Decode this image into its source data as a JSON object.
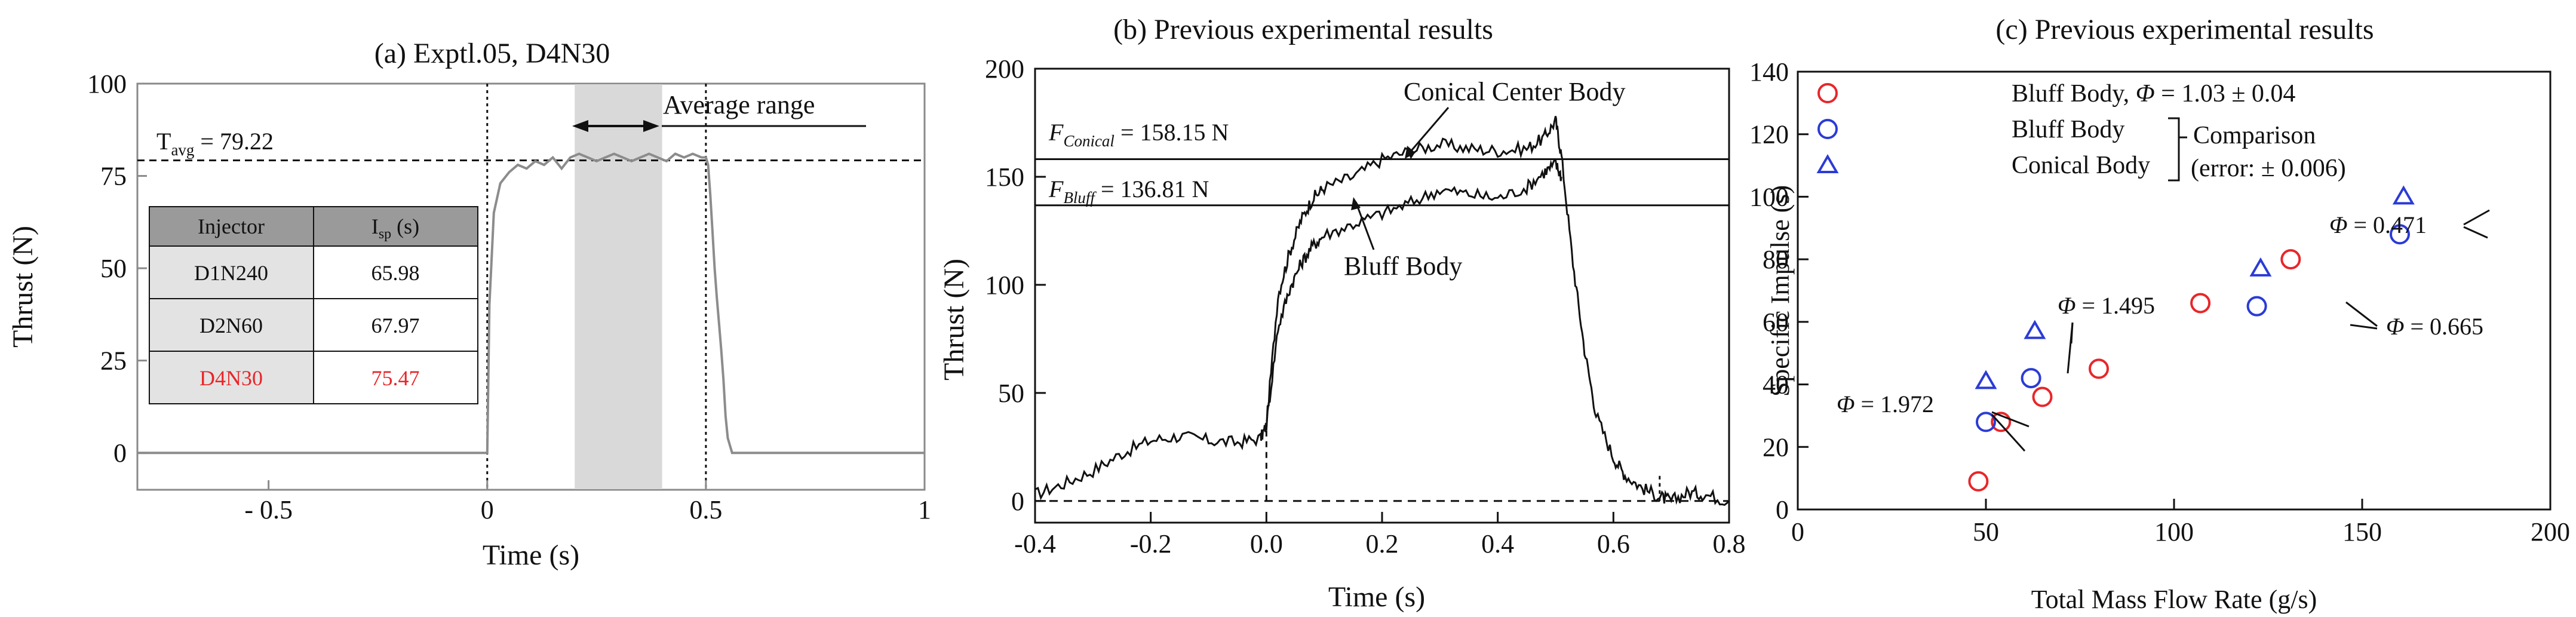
{
  "colors": {
    "axis": "#111111",
    "trace": "#8c8c8c",
    "shade": "#d9d9d9",
    "red": "#e8262a",
    "blue": "#2b3bd6",
    "table_head": "#9a9a9a",
    "table_row": "#e3e3e3"
  },
  "chart_data": [
    {
      "type": "line",
      "title": "(a) Exptl.05, D4N30",
      "xlabel": "Time (s)",
      "ylabel": "Thrust (N)",
      "xlim": [
        -0.8,
        1.0
      ],
      "ylim": [
        -10,
        100
      ],
      "xticks": [
        -0.5,
        0,
        0.5,
        1
      ],
      "xtick_labels": [
        "- 0.5",
        "0",
        "0.5",
        "1"
      ],
      "yticks": [
        0,
        25,
        50,
        75,
        100
      ],
      "ytick_labels": [
        "0",
        "25",
        "50",
        "75",
        "100"
      ],
      "t_avg_label": "T",
      "t_avg_sub": "avg",
      "t_avg_value": " = 79.22",
      "t_avg": 79.22,
      "average_range_label": "Average range",
      "average_range": [
        0.2,
        0.4
      ],
      "series": [
        {
          "name": "Thrust trace",
          "x": [
            -0.8,
            0.0,
            0.005,
            0.015,
            0.03,
            0.05,
            0.07,
            0.09,
            0.11,
            0.13,
            0.15,
            0.17,
            0.19,
            0.21,
            0.23,
            0.25,
            0.27,
            0.29,
            0.31,
            0.33,
            0.35,
            0.37,
            0.39,
            0.41,
            0.43,
            0.45,
            0.47,
            0.49,
            0.5,
            0.505,
            0.51,
            0.515,
            0.52,
            0.525,
            0.53,
            0.535,
            0.54,
            0.545,
            0.55,
            0.56,
            1.0
          ],
          "y": [
            0,
            0,
            40,
            65,
            73,
            76,
            78,
            77,
            79,
            78,
            80,
            77,
            80,
            81,
            80,
            79,
            80,
            81,
            80,
            79,
            80,
            81,
            80,
            79,
            81,
            80,
            81,
            80,
            80,
            78,
            70,
            60,
            50,
            42,
            35,
            28,
            20,
            10,
            4,
            0,
            0
          ]
        }
      ],
      "table": {
        "headers": [
          "Injector",
          "I",
          "sp",
          " (s)"
        ],
        "rows": [
          {
            "injector": "D1N240",
            "isp": "65.98",
            "highlight": false
          },
          {
            "injector": "D2N60",
            "isp": "67.97",
            "highlight": false
          },
          {
            "injector": "D4N30",
            "isp": "75.47",
            "highlight": true
          }
        ]
      }
    },
    {
      "type": "line",
      "title": "(b) Previous experimental results",
      "xlabel": "Time (s)",
      "ylabel": "Thrust (N)",
      "xlim": [
        -0.4,
        0.8
      ],
      "ylim": [
        -10,
        200
      ],
      "xticks": [
        -0.4,
        -0.2,
        0.0,
        0.2,
        0.4,
        0.6,
        0.8
      ],
      "xtick_labels": [
        "-0.4",
        "-0.2",
        "0.0",
        "0.2",
        "0.4",
        "0.6",
        "0.8"
      ],
      "yticks": [
        0,
        50,
        100,
        150,
        200
      ],
      "ytick_labels": [
        "0",
        "50",
        "100",
        "150",
        "200"
      ],
      "hlines": [
        {
          "name": "F_Conical",
          "label_main": "F",
          "label_sub": "Conical",
          "label_value": " = 158.15 N",
          "value": 158.15
        },
        {
          "name": "F_Bluff",
          "label_main": "F",
          "label_sub": "Bluff",
          "label_value": " = 136.81 N",
          "value": 136.81
        }
      ],
      "annotations": [
        "Conical Center Body",
        "Bluff Body"
      ],
      "series": [
        {
          "name": "Conical Center Body",
          "x": [
            -0.4,
            -0.35,
            -0.3,
            -0.25,
            -0.2,
            -0.15,
            -0.1,
            -0.05,
            -0.01,
            0.0,
            0.02,
            0.04,
            0.06,
            0.08,
            0.1,
            0.15,
            0.2,
            0.25,
            0.3,
            0.35,
            0.4,
            0.45,
            0.48,
            0.5,
            0.51,
            0.53,
            0.55,
            0.57,
            0.6,
            0.62,
            0.65,
            0.68,
            0.7,
            0.73,
            0.76,
            0.8
          ],
          "y": [
            3,
            8,
            14,
            22,
            28,
            30,
            28,
            27,
            29,
            35,
            95,
            115,
            130,
            140,
            145,
            150,
            158,
            162,
            165,
            163,
            162,
            163,
            168,
            176,
            160,
            110,
            70,
            40,
            20,
            12,
            6,
            2,
            0,
            4,
            3,
            0
          ]
        },
        {
          "name": "Bluff Body",
          "x": [
            0.0,
            0.02,
            0.04,
            0.06,
            0.08,
            0.1,
            0.15,
            0.2,
            0.25,
            0.3,
            0.35,
            0.4,
            0.45,
            0.48,
            0.5,
            0.51
          ],
          "y": [
            35,
            80,
            98,
            110,
            118,
            123,
            128,
            133,
            138,
            144,
            142,
            140,
            145,
            152,
            156,
            150
          ]
        }
      ]
    },
    {
      "type": "scatter",
      "title": "(c) Previous experimental results",
      "xlabel": "Total Mass Flow Rate (g/s)",
      "ylabel": "Specific Impulse (s)",
      "xlim": [
        0,
        200
      ],
      "ylim": [
        0,
        140
      ],
      "xticks": [
        0,
        50,
        100,
        150,
        200
      ],
      "yticks": [
        0,
        20,
        40,
        60,
        80,
        100,
        120,
        140
      ],
      "legend": [
        {
          "text": "Bluff Body, ",
          "phi": "Φ",
          "rest": " = 1.03 ± 0.04",
          "marker": "circle",
          "color": "red"
        },
        {
          "text": "Bluff Body",
          "marker": "circle",
          "color": "blue"
        },
        {
          "text": "Conical Body",
          "marker": "triangle",
          "color": "blue"
        }
      ],
      "comparison_label": "Comparison",
      "error_label": "(error: ± 0.006)",
      "phi_labels": [
        {
          "phi": "Φ",
          "text": " = 0.471",
          "value": 0.471
        },
        {
          "phi": "Φ",
          "text": " = 0.665",
          "value": 0.665
        },
        {
          "phi": "Φ",
          "text": " = 1.495",
          "value": 1.495
        },
        {
          "phi": "Φ",
          "text": " = 1.972",
          "value": 1.972
        }
      ],
      "series": [
        {
          "name": "Bluff Body, Φ = 1.03 ± 0.04",
          "marker": "circle",
          "color": "red",
          "points": [
            [
              48,
              9
            ],
            [
              54,
              28
            ],
            [
              65,
              36
            ],
            [
              80,
              45
            ],
            [
              107,
              66
            ],
            [
              131,
              80
            ]
          ]
        },
        {
          "name": "Bluff Body (Comparison)",
          "marker": "circle",
          "color": "blue",
          "points": [
            [
              50,
              28
            ],
            [
              62,
              42
            ],
            [
              122,
              65
            ],
            [
              160,
              88
            ]
          ]
        },
        {
          "name": "Conical Body (Comparison)",
          "marker": "triangle",
          "color": "blue",
          "points": [
            [
              50,
              41
            ],
            [
              63,
              57
            ],
            [
              123,
              77
            ],
            [
              161,
              100
            ]
          ]
        }
      ]
    }
  ]
}
